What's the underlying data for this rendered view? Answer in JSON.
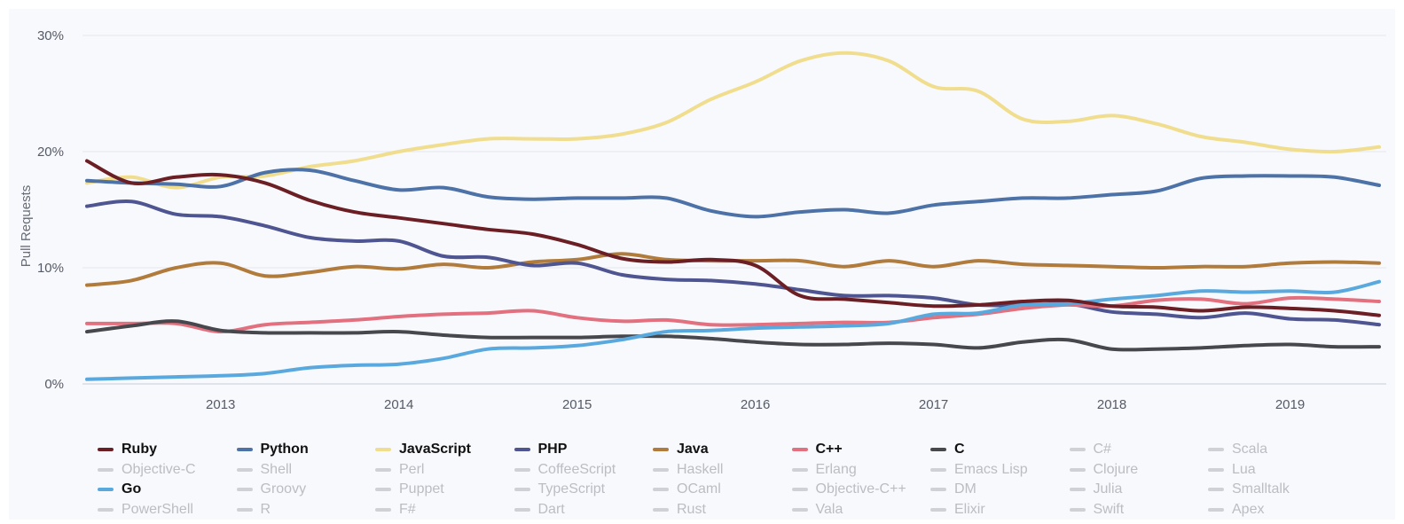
{
  "colors": {
    "background": "#f8f9fd",
    "inactive_legend": "#cfd1d6"
  },
  "chart_data": {
    "type": "line",
    "title": "",
    "xlabel": "",
    "ylabel": "Pull Requests",
    "y_ticks": [
      "0%",
      "10%",
      "20%",
      "30%"
    ],
    "x_ticks": [
      "2013",
      "2014",
      "2015",
      "2016",
      "2017",
      "2018",
      "2019"
    ],
    "xlim": [
      2012.25,
      2019.5
    ],
    "ylim": [
      0,
      30
    ],
    "grid": true,
    "legend_position": "bottom",
    "x": [
      2012.25,
      2012.5,
      2012.75,
      2013.0,
      2013.25,
      2013.5,
      2013.75,
      2014.0,
      2014.25,
      2014.5,
      2014.75,
      2015.0,
      2015.25,
      2015.5,
      2015.75,
      2016.0,
      2016.25,
      2016.5,
      2016.75,
      2017.0,
      2017.25,
      2017.5,
      2017.75,
      2018.0,
      2018.25,
      2018.5,
      2018.75,
      2019.0,
      2019.25,
      2019.5
    ],
    "series": [
      {
        "name": "Ruby",
        "color": "#6b1f24",
        "values": [
          19.2,
          17.3,
          17.8,
          18.0,
          17.3,
          15.8,
          14.8,
          14.3,
          13.8,
          13.3,
          12.9,
          12.0,
          10.8,
          10.5,
          10.7,
          10.2,
          7.6,
          7.3,
          7.0,
          6.7,
          6.8,
          7.1,
          7.2,
          6.7,
          6.6,
          6.3,
          6.6,
          6.5,
          6.3,
          5.9
        ]
      },
      {
        "name": "Python",
        "color": "#4d72a8",
        "values": [
          17.5,
          17.3,
          17.2,
          17.0,
          18.2,
          18.4,
          17.5,
          16.7,
          16.9,
          16.1,
          15.9,
          16.0,
          16.0,
          16.0,
          14.9,
          14.4,
          14.8,
          15.0,
          14.7,
          15.4,
          15.7,
          16.0,
          16.0,
          16.3,
          16.6,
          17.7,
          17.9,
          17.9,
          17.8,
          17.1
        ]
      },
      {
        "name": "JavaScript",
        "color": "#f0de8e",
        "values": [
          17.3,
          17.8,
          16.9,
          17.8,
          17.9,
          18.7,
          19.2,
          20.0,
          20.6,
          21.1,
          21.1,
          21.1,
          21.5,
          22.5,
          24.5,
          26.0,
          27.8,
          28.5,
          27.8,
          25.6,
          25.2,
          22.8,
          22.6,
          23.1,
          22.4,
          21.3,
          20.8,
          20.2,
          20.0,
          20.4
        ]
      },
      {
        "name": "PHP",
        "color": "#4e5591",
        "values": [
          15.3,
          15.7,
          14.6,
          14.4,
          13.6,
          12.6,
          12.3,
          12.3,
          11.0,
          10.9,
          10.2,
          10.4,
          9.4,
          9.0,
          8.9,
          8.6,
          8.1,
          7.6,
          7.6,
          7.4,
          6.8,
          6.8,
          6.9,
          6.2,
          6.0,
          5.7,
          6.1,
          5.6,
          5.5,
          5.1
        ]
      },
      {
        "name": "Java",
        "color": "#b17b3c",
        "values": [
          8.5,
          8.9,
          10.0,
          10.4,
          9.3,
          9.6,
          10.1,
          9.9,
          10.3,
          10.0,
          10.5,
          10.7,
          11.2,
          10.7,
          10.6,
          10.6,
          10.6,
          10.1,
          10.6,
          10.1,
          10.6,
          10.3,
          10.2,
          10.1,
          10.0,
          10.1,
          10.1,
          10.4,
          10.5,
          10.4
        ]
      },
      {
        "name": "C++",
        "color": "#e2707e",
        "values": [
          5.2,
          5.2,
          5.2,
          4.5,
          5.1,
          5.3,
          5.5,
          5.8,
          6.0,
          6.1,
          6.3,
          5.7,
          5.4,
          5.5,
          5.1,
          5.1,
          5.2,
          5.3,
          5.3,
          5.7,
          6.0,
          6.5,
          6.8,
          6.7,
          7.2,
          7.3,
          6.9,
          7.4,
          7.3,
          7.1
        ]
      },
      {
        "name": "C",
        "color": "#47484d",
        "values": [
          4.5,
          5.0,
          5.4,
          4.6,
          4.4,
          4.4,
          4.4,
          4.5,
          4.2,
          4.0,
          4.0,
          4.0,
          4.1,
          4.1,
          3.9,
          3.6,
          3.4,
          3.4,
          3.5,
          3.4,
          3.1,
          3.6,
          3.8,
          3.0,
          3.0,
          3.1,
          3.3,
          3.4,
          3.2,
          3.2
        ]
      },
      {
        "name": "Go",
        "color": "#5aa9de",
        "values": [
          0.4,
          0.5,
          0.6,
          0.7,
          0.9,
          1.4,
          1.6,
          1.7,
          2.2,
          3.0,
          3.1,
          3.3,
          3.8,
          4.5,
          4.6,
          4.8,
          4.9,
          5.0,
          5.2,
          6.0,
          6.1,
          6.8,
          6.9,
          7.3,
          7.6,
          8.0,
          7.9,
          8.0,
          7.9,
          8.8
        ]
      }
    ]
  },
  "legend": {
    "items": [
      {
        "label": "Ruby",
        "active": true,
        "color": "#6b1f24"
      },
      {
        "label": "Python",
        "active": true,
        "color": "#4d72a8"
      },
      {
        "label": "JavaScript",
        "active": true,
        "color": "#f0de8e"
      },
      {
        "label": "PHP",
        "active": true,
        "color": "#4e5591"
      },
      {
        "label": "Java",
        "active": true,
        "color": "#b17b3c"
      },
      {
        "label": "C++",
        "active": true,
        "color": "#e2707e"
      },
      {
        "label": "C",
        "active": true,
        "color": "#47484d"
      },
      {
        "label": "C#",
        "active": false
      },
      {
        "label": "Scala",
        "active": false
      },
      {
        "label": "Objective-C",
        "active": false
      },
      {
        "label": "Shell",
        "active": false
      },
      {
        "label": "Perl",
        "active": false
      },
      {
        "label": "CoffeeScript",
        "active": false
      },
      {
        "label": "Haskell",
        "active": false
      },
      {
        "label": "Erlang",
        "active": false
      },
      {
        "label": "Emacs Lisp",
        "active": false
      },
      {
        "label": "Clojure",
        "active": false
      },
      {
        "label": "Lua",
        "active": false
      },
      {
        "label": "Go",
        "active": true,
        "color": "#5aa9de"
      },
      {
        "label": "Groovy",
        "active": false
      },
      {
        "label": "Puppet",
        "active": false
      },
      {
        "label": "TypeScript",
        "active": false
      },
      {
        "label": "OCaml",
        "active": false
      },
      {
        "label": "Objective-C++",
        "active": false
      },
      {
        "label": "DM",
        "active": false
      },
      {
        "label": "Julia",
        "active": false
      },
      {
        "label": "Smalltalk",
        "active": false
      },
      {
        "label": "PowerShell",
        "active": false
      },
      {
        "label": "R",
        "active": false
      },
      {
        "label": "F#",
        "active": false
      },
      {
        "label": "Dart",
        "active": false
      },
      {
        "label": "Rust",
        "active": false
      },
      {
        "label": "Vala",
        "active": false
      },
      {
        "label": "Elixir",
        "active": false
      },
      {
        "label": "Swift",
        "active": false
      },
      {
        "label": "Apex",
        "active": false
      }
    ]
  }
}
